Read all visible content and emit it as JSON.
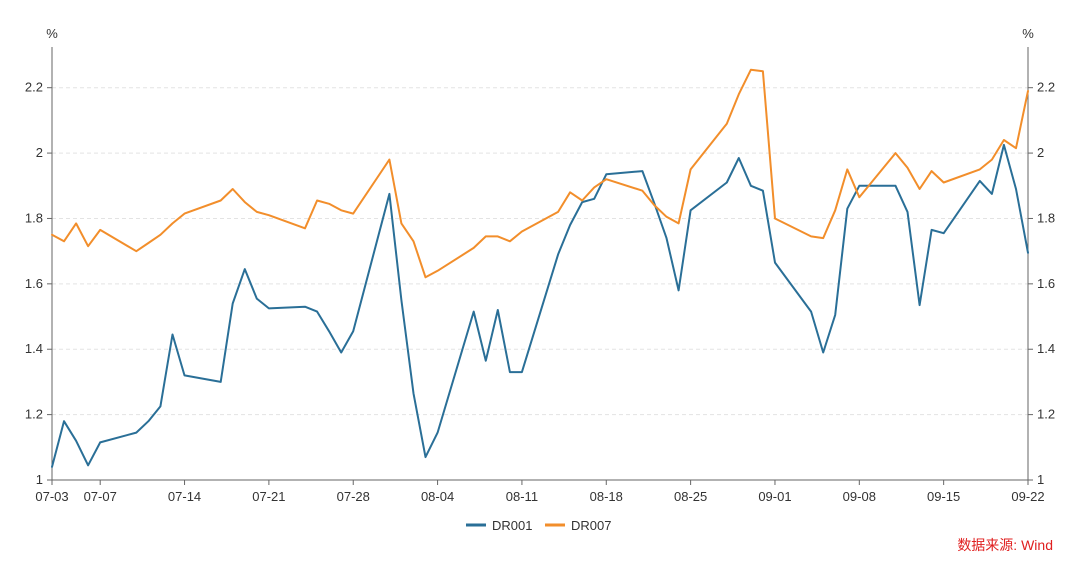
{
  "chart_data": {
    "type": "line",
    "y_unit_left": "%",
    "y_unit_right": "%",
    "ylim": [
      1.0,
      2.3
    ],
    "yticks": [
      1,
      1.2,
      1.4,
      1.6,
      1.8,
      2,
      2.2
    ],
    "ytick_labels": [
      "1",
      "1.2",
      "1.4",
      "1.6",
      "1.8",
      "2",
      "2.2"
    ],
    "x_start": "07-03",
    "x_end": "09-22",
    "x_ticks": [
      "07-03",
      "07-07",
      "07-14",
      "07-21",
      "07-28",
      "08-04",
      "08-11",
      "08-18",
      "08-25",
      "09-01",
      "09-08",
      "09-15",
      "09-22"
    ],
    "grid": true,
    "legend_position": "bottom-center",
    "series": [
      {
        "name": "DR001",
        "color": "#2a6f97",
        "points": [
          [
            "07-03",
            1.04
          ],
          [
            "07-04",
            1.18
          ],
          [
            "07-05",
            1.12
          ],
          [
            "07-06",
            1.045
          ],
          [
            "07-07",
            1.115
          ],
          [
            "07-10",
            1.145
          ],
          [
            "07-11",
            1.18
          ],
          [
            "07-12",
            1.225
          ],
          [
            "07-13",
            1.445
          ],
          [
            "07-14",
            1.32
          ],
          [
            "07-17",
            1.3
          ],
          [
            "07-18",
            1.54
          ],
          [
            "07-19",
            1.645
          ],
          [
            "07-20",
            1.555
          ],
          [
            "07-21",
            1.525
          ],
          [
            "07-24",
            1.53
          ],
          [
            "07-25",
            1.515
          ],
          [
            "07-26",
            1.455
          ],
          [
            "07-27",
            1.39
          ],
          [
            "07-28",
            1.455
          ],
          [
            "07-31",
            1.875
          ],
          [
            "08-01",
            1.55
          ],
          [
            "08-02",
            1.265
          ],
          [
            "08-03",
            1.07
          ],
          [
            "08-04",
            1.145
          ],
          [
            "08-07",
            1.515
          ],
          [
            "08-08",
            1.365
          ],
          [
            "08-09",
            1.52
          ],
          [
            "08-10",
            1.33
          ],
          [
            "08-11",
            1.33
          ],
          [
            "08-14",
            1.69
          ],
          [
            "08-15",
            1.78
          ],
          [
            "08-16",
            1.85
          ],
          [
            "08-17",
            1.86
          ],
          [
            "08-18",
            1.935
          ],
          [
            "08-21",
            1.945
          ],
          [
            "08-22",
            1.845
          ],
          [
            "08-23",
            1.74
          ],
          [
            "08-24",
            1.58
          ],
          [
            "08-25",
            1.825
          ],
          [
            "08-28",
            1.91
          ],
          [
            "08-29",
            1.985
          ],
          [
            "08-30",
            1.9
          ],
          [
            "08-31",
            1.885
          ],
          [
            "09-01",
            1.665
          ],
          [
            "09-04",
            1.515
          ],
          [
            "09-05",
            1.39
          ],
          [
            "09-06",
            1.505
          ],
          [
            "09-07",
            1.83
          ],
          [
            "09-08",
            1.9
          ],
          [
            "09-11",
            1.9
          ],
          [
            "09-12",
            1.82
          ],
          [
            "09-13",
            1.535
          ],
          [
            "09-14",
            1.765
          ],
          [
            "09-15",
            1.755
          ],
          [
            "09-18",
            1.915
          ],
          [
            "09-19",
            1.875
          ],
          [
            "09-20",
            2.025
          ],
          [
            "09-21",
            1.89
          ],
          [
            "09-22",
            1.695
          ]
        ]
      },
      {
        "name": "DR007",
        "color": "#f28e2b",
        "points": [
          [
            "07-03",
            1.75
          ],
          [
            "07-04",
            1.73
          ],
          [
            "07-05",
            1.785
          ],
          [
            "07-06",
            1.715
          ],
          [
            "07-07",
            1.765
          ],
          [
            "07-10",
            1.7
          ],
          [
            "07-11",
            1.725
          ],
          [
            "07-12",
            1.75
          ],
          [
            "07-13",
            1.785
          ],
          [
            "07-14",
            1.815
          ],
          [
            "07-17",
            1.855
          ],
          [
            "07-18",
            1.89
          ],
          [
            "07-19",
            1.85
          ],
          [
            "07-20",
            1.82
          ],
          [
            "07-21",
            1.81
          ],
          [
            "07-24",
            1.77
          ],
          [
            "07-25",
            1.855
          ],
          [
            "07-26",
            1.845
          ],
          [
            "07-27",
            1.825
          ],
          [
            "07-28",
            1.815
          ],
          [
            "07-31",
            1.98
          ],
          [
            "08-01",
            1.785
          ],
          [
            "08-02",
            1.73
          ],
          [
            "08-03",
            1.62
          ],
          [
            "08-04",
            1.64
          ],
          [
            "08-07",
            1.71
          ],
          [
            "08-08",
            1.745
          ],
          [
            "08-09",
            1.745
          ],
          [
            "08-10",
            1.73
          ],
          [
            "08-11",
            1.76
          ],
          [
            "08-14",
            1.82
          ],
          [
            "08-15",
            1.88
          ],
          [
            "08-16",
            1.855
          ],
          [
            "08-17",
            1.895
          ],
          [
            "08-18",
            1.92
          ],
          [
            "08-21",
            1.885
          ],
          [
            "08-22",
            1.84
          ],
          [
            "08-23",
            1.805
          ],
          [
            "08-24",
            1.785
          ],
          [
            "08-25",
            1.95
          ],
          [
            "08-28",
            2.09
          ],
          [
            "08-29",
            2.18
          ],
          [
            "08-30",
            2.255
          ],
          [
            "08-31",
            2.25
          ],
          [
            "09-01",
            1.8
          ],
          [
            "09-04",
            1.745
          ],
          [
            "09-05",
            1.74
          ],
          [
            "09-06",
            1.825
          ],
          [
            "09-07",
            1.95
          ],
          [
            "09-08",
            1.865
          ],
          [
            "09-11",
            2.0
          ],
          [
            "09-12",
            1.955
          ],
          [
            "09-13",
            1.89
          ],
          [
            "09-14",
            1.945
          ],
          [
            "09-15",
            1.91
          ],
          [
            "09-18",
            1.95
          ],
          [
            "09-19",
            1.98
          ],
          [
            "09-20",
            2.04
          ],
          [
            "09-21",
            2.015
          ],
          [
            "09-22",
            2.19
          ]
        ]
      }
    ]
  },
  "source_text": "数据来源: Wind"
}
